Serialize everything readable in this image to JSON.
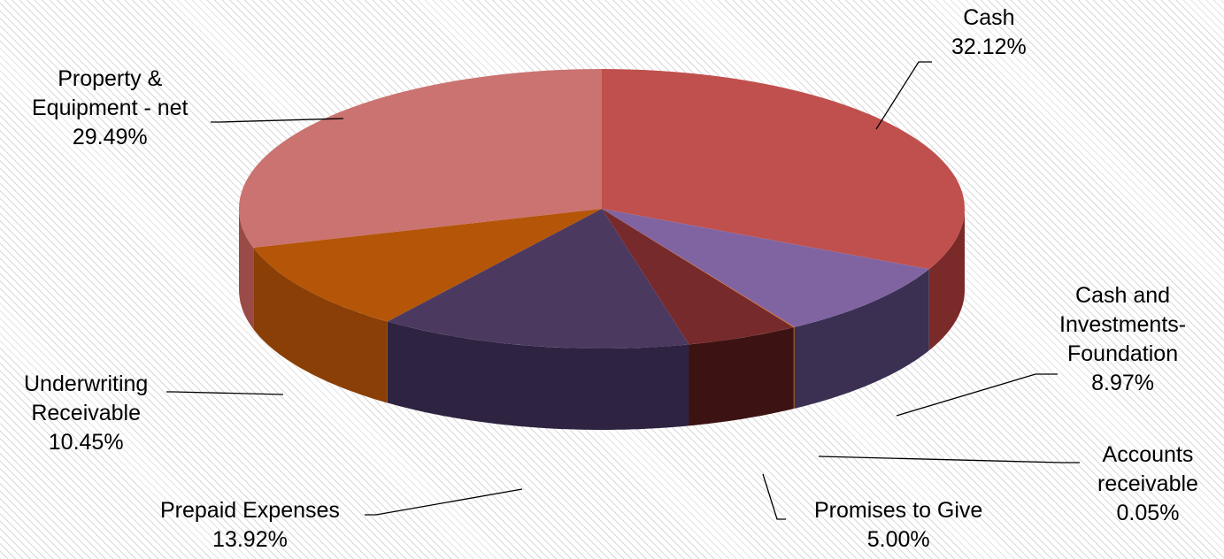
{
  "chart_data": {
    "type": "pie",
    "title": "",
    "style": "3d",
    "slices": [
      {
        "name": "Cash",
        "label_lines": [
          "Cash"
        ],
        "value": 32.12,
        "percent_label": "32.12%",
        "color": "#C0504D",
        "side_color": "#7A2A28"
      },
      {
        "name": "Cash and Investments-Foundation",
        "label_lines": [
          "Cash and",
          "Investments-",
          "Foundation"
        ],
        "value": 8.97,
        "percent_label": "8.97%",
        "color": "#8064A2",
        "side_color": "#3B2F52"
      },
      {
        "name": "Accounts receivable",
        "label_lines": [
          "Accounts",
          "receivable"
        ],
        "value": 0.05,
        "percent_label": "0.05%",
        "color": "#E46C0A",
        "side_color": "#8A3E05"
      },
      {
        "name": "Promises to Give",
        "label_lines": [
          "Promises to Give"
        ],
        "value": 5.0,
        "percent_label": "5.00%",
        "color": "#772A2B",
        "side_color": "#3D1212"
      },
      {
        "name": "Prepaid Expenses",
        "label_lines": [
          "Prepaid Expenses"
        ],
        "value": 13.92,
        "percent_label": "13.92%",
        "color": "#4B3960",
        "side_color": "#2E2340"
      },
      {
        "name": "Underwriting Receivable",
        "label_lines": [
          "Underwriting",
          "Receivable"
        ],
        "value": 10.45,
        "percent_label": "10.45%",
        "color": "#B45508",
        "side_color": "#8A3F06"
      },
      {
        "name": "Property & Equipment - net",
        "label_lines": [
          "Property &",
          "Equipment - net"
        ],
        "value": 29.49,
        "percent_label": "29.49%",
        "color": "#CB7370",
        "side_color": "#9A4A47"
      }
    ]
  }
}
